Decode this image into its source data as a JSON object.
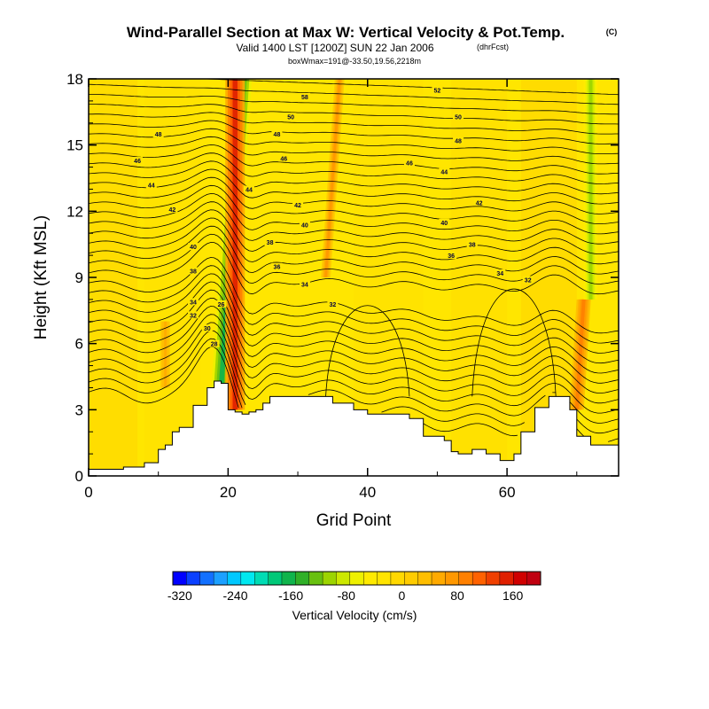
{
  "chart_data": {
    "type": "heatmap",
    "title": "Wind-Parallel Section at Max W: Vertical Velocity & Pot.Temp.",
    "title_mark": "(C)",
    "subtitle": "Valid 1400 LST [1200Z] SUN 22 Jan 2006",
    "subtitle_mark": "(dhrFcst)",
    "subtitle2": "boxWmax=191@-33.50,19.56,2218m",
    "xlabel": "Grid Point",
    "ylabel": "Height (Kft MSL)",
    "xlim": [
      0,
      76
    ],
    "ylim": [
      0,
      18
    ],
    "xticks": [
      0,
      20,
      40,
      60
    ],
    "yticks": [
      0,
      3,
      6,
      9,
      12,
      15,
      18
    ],
    "terrain": {
      "x": [
        0,
        4,
        5,
        7,
        8,
        9,
        10,
        11,
        12,
        13,
        14,
        15,
        17,
        18,
        19,
        20,
        21,
        22,
        23,
        24,
        25,
        26,
        30,
        35,
        38,
        40,
        46,
        48,
        51,
        52,
        53,
        55,
        57,
        59,
        61,
        62,
        64,
        66,
        68,
        69,
        70,
        72,
        75,
        76
      ],
      "height_kft": [
        0.3,
        0.3,
        0.4,
        0.4,
        0.6,
        0.6,
        1.2,
        1.4,
        2.0,
        2.2,
        2.2,
        3.2,
        4.0,
        4.3,
        4.2,
        3.0,
        2.9,
        2.8,
        2.9,
        3.0,
        3.3,
        3.6,
        3.6,
        3.3,
        3.0,
        2.8,
        2.6,
        1.8,
        1.6,
        1.1,
        1.0,
        1.2,
        1.0,
        0.7,
        1.0,
        2.0,
        3.1,
        3.6,
        3.6,
        3.0,
        1.8,
        1.4,
        1.4,
        1.4
      ]
    },
    "features": [
      {
        "name": "downdraft",
        "x_bottom": 19,
        "x_top": 22,
        "z_bottom": 4,
        "z_top": 18,
        "value": -160
      },
      {
        "name": "updraft",
        "x_bottom": 21,
        "x_top": 21,
        "z_bottom": 3,
        "z_top": 18,
        "value": 160
      },
      {
        "name": "updraft",
        "x_bottom": 34,
        "x_top": 36,
        "z_bottom": 9,
        "z_top": 18,
        "value": 80
      },
      {
        "name": "updraft",
        "x_bottom": 70,
        "x_top": 71,
        "z_bottom": 3,
        "z_top": 8,
        "value": 100
      },
      {
        "name": "downdraft",
        "x_bottom": 72,
        "x_top": 72,
        "z_bottom": 8,
        "z_top": 18,
        "value": -100
      },
      {
        "name": "updraft",
        "x_bottom": 11,
        "x_top": 11,
        "z_bottom": 4,
        "z_top": 7,
        "value": 60
      }
    ],
    "contour_labels": [
      {
        "text": "52",
        "x": 50,
        "z": 17.5
      },
      {
        "text": "50",
        "x": 53,
        "z": 16.3
      },
      {
        "text": "48",
        "x": 53,
        "z": 15.2
      },
      {
        "text": "46",
        "x": 46,
        "z": 14.2
      },
      {
        "text": "44",
        "x": 51,
        "z": 13.8
      },
      {
        "text": "42",
        "x": 56,
        "z": 12.4
      },
      {
        "text": "40",
        "x": 51,
        "z": 11.5
      },
      {
        "text": "38",
        "x": 55,
        "z": 10.5
      },
      {
        "text": "36",
        "x": 52,
        "z": 10.0
      },
      {
        "text": "34",
        "x": 59,
        "z": 9.2
      },
      {
        "text": "32",
        "x": 63,
        "z": 8.9
      },
      {
        "text": "58",
        "x": 31,
        "z": 17.2
      },
      {
        "text": "50",
        "x": 29,
        "z": 16.3
      },
      {
        "text": "48",
        "x": 27,
        "z": 15.5
      },
      {
        "text": "46",
        "x": 28,
        "z": 14.4
      },
      {
        "text": "44",
        "x": 23,
        "z": 13.0
      },
      {
        "text": "42",
        "x": 30,
        "z": 12.3
      },
      {
        "text": "40",
        "x": 31,
        "z": 11.4
      },
      {
        "text": "38",
        "x": 26,
        "z": 10.6
      },
      {
        "text": "36",
        "x": 27,
        "z": 9.5
      },
      {
        "text": "34",
        "x": 31,
        "z": 8.7
      },
      {
        "text": "32",
        "x": 35,
        "z": 7.8
      },
      {
        "text": "48",
        "x": 10,
        "z": 15.5
      },
      {
        "text": "46",
        "x": 7,
        "z": 14.3
      },
      {
        "text": "44",
        "x": 9,
        "z": 13.2
      },
      {
        "text": "42",
        "x": 12,
        "z": 12.1
      },
      {
        "text": "40",
        "x": 15,
        "z": 10.4
      },
      {
        "text": "38",
        "x": 15,
        "z": 9.3
      },
      {
        "text": "34",
        "x": 15,
        "z": 7.9
      },
      {
        "text": "32",
        "x": 15,
        "z": 7.3
      },
      {
        "text": "30",
        "x": 17,
        "z": 6.7
      },
      {
        "text": "28",
        "x": 18,
        "z": 6.0
      },
      {
        "text": "26",
        "x": 19,
        "z": 7.8
      }
    ],
    "colorbar": {
      "label": "Vertical Velocity (cm/s)",
      "min": -330,
      "max": 200,
      "step": 20,
      "ticks": [
        -320,
        -240,
        -160,
        -80,
        0,
        80,
        160
      ],
      "colors": [
        "#0000ff",
        "#0a40ff",
        "#1270ff",
        "#1ca0ff",
        "#00c8ff",
        "#00e8f0",
        "#00dcb4",
        "#00c878",
        "#10b44c",
        "#30b028",
        "#68c010",
        "#9cd400",
        "#cce800",
        "#eef000",
        "#ffea00",
        "#ffe400",
        "#ffd800",
        "#ffcc00",
        "#ffbe00",
        "#ffaa00",
        "#ff9800",
        "#ff8000",
        "#ff6200",
        "#f04000",
        "#e02000",
        "#d00000",
        "#c00010"
      ]
    }
  }
}
